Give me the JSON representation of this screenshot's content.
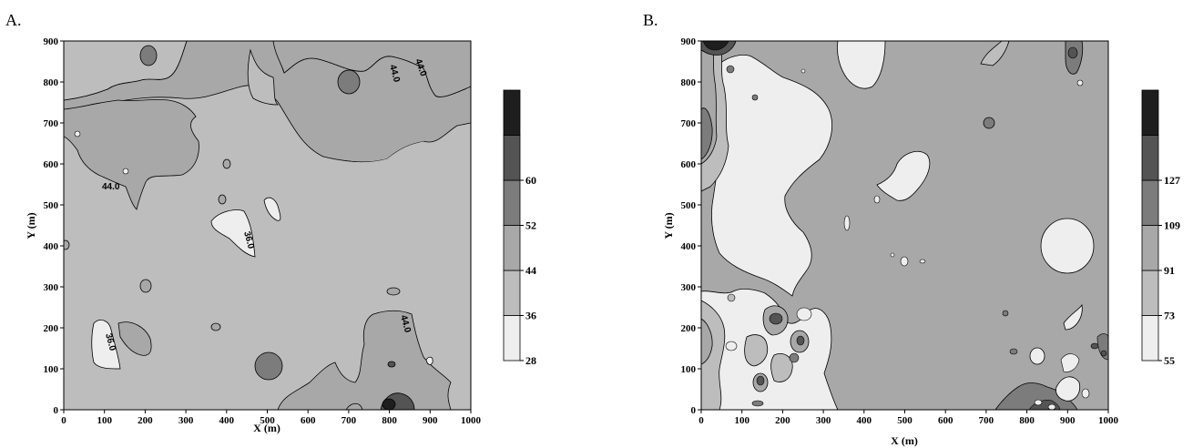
{
  "chart_data": [
    {
      "panel_label": "A.",
      "type": "contour",
      "xlabel": "X (m)",
      "ylabel": "Y (m)",
      "xlim": [
        0,
        1000
      ],
      "ylim": [
        0,
        900
      ],
      "x_ticks": [
        "0",
        "100",
        "200",
        "300",
        "400",
        "500",
        "600",
        "700",
        "800",
        "900",
        "1000"
      ],
      "y_ticks": [
        "0",
        "100",
        "200",
        "300",
        "400",
        "500",
        "600",
        "700",
        "800",
        "900"
      ],
      "colorbar": {
        "levels": [
          28,
          36,
          44,
          52,
          60,
          68
        ],
        "tick_labels": [
          "28",
          "36",
          "44",
          "52",
          "60"
        ],
        "colors": [
          "#eeeeee",
          "#bdbdbd",
          "#a8a8a8",
          "#7c7c7c",
          "#545454",
          "#1e1e1e"
        ]
      },
      "contour_labels": [
        "44.0",
        "44.0",
        "44.0",
        "36.0",
        "36.0",
        "44.0"
      ]
    },
    {
      "panel_label": "B.",
      "type": "contour",
      "xlabel": "X (m)",
      "ylabel": "Y (m)",
      "xlim": [
        0,
        1000
      ],
      "ylim": [
        0,
        900
      ],
      "x_ticks": [
        "0",
        "100",
        "200",
        "300",
        "400",
        "500",
        "600",
        "700",
        "800",
        "900",
        "1000"
      ],
      "y_ticks": [
        "0",
        "100",
        "200",
        "300",
        "400",
        "500",
        "600",
        "700",
        "800",
        "900"
      ],
      "colorbar": {
        "levels": [
          55,
          73,
          91,
          109,
          127,
          145
        ],
        "tick_labels": [
          "55",
          "73",
          "91",
          "109",
          "127"
        ],
        "colors": [
          "#eeeeee",
          "#bdbdbd",
          "#a8a8a8",
          "#7c7c7c",
          "#545454",
          "#1e1e1e"
        ]
      },
      "contour_labels": []
    }
  ]
}
